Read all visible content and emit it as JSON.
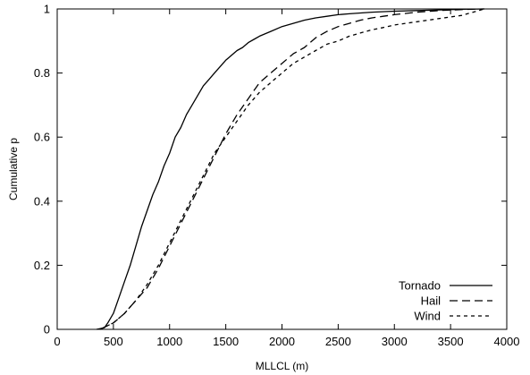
{
  "chart_data": {
    "type": "line",
    "title": "",
    "xlabel": "MLLCL (m)",
    "ylabel": "Cumulative p",
    "xlim": [
      0,
      4000
    ],
    "ylim": [
      0,
      1
    ],
    "xticks": [
      "0",
      "500",
      "1000",
      "1500",
      "2000",
      "2500",
      "3000",
      "3500",
      "4000"
    ],
    "yticks": [
      "0",
      "0.2",
      "0.4",
      "0.6",
      "0.8",
      "1"
    ],
    "grid": false,
    "legend_position": "bottom-right",
    "series": [
      {
        "name": "Tornado",
        "dash": "solid",
        "x": [
          350,
          420,
          450,
          500,
          550,
          600,
          650,
          700,
          750,
          800,
          850,
          900,
          950,
          1000,
          1050,
          1100,
          1150,
          1200,
          1250,
          1300,
          1350,
          1400,
          1450,
          1500,
          1550,
          1600,
          1650,
          1700,
          1750,
          1800,
          1900,
          2000,
          2100,
          2200,
          2300,
          2400,
          2500,
          2600,
          2800,
          3000,
          3200,
          3400,
          3600,
          3800
        ],
        "y": [
          0,
          0.005,
          0.02,
          0.05,
          0.1,
          0.15,
          0.2,
          0.26,
          0.32,
          0.37,
          0.42,
          0.46,
          0.51,
          0.55,
          0.6,
          0.63,
          0.67,
          0.7,
          0.73,
          0.76,
          0.78,
          0.8,
          0.82,
          0.84,
          0.855,
          0.87,
          0.88,
          0.895,
          0.905,
          0.915,
          0.93,
          0.945,
          0.955,
          0.965,
          0.972,
          0.977,
          0.982,
          0.985,
          0.99,
          0.993,
          0.995,
          0.997,
          0.999,
          1
        ]
      },
      {
        "name": "Hail",
        "dash": "long",
        "x": [
          380,
          500,
          600,
          700,
          800,
          900,
          1000,
          1100,
          1200,
          1300,
          1400,
          1500,
          1600,
          1700,
          1800,
          1900,
          2000,
          2100,
          2200,
          2300,
          2400,
          2500,
          2600,
          2700,
          2800,
          2900,
          3000,
          3200,
          3400,
          3600,
          3800
        ],
        "y": [
          0,
          0.02,
          0.05,
          0.09,
          0.13,
          0.19,
          0.26,
          0.33,
          0.4,
          0.47,
          0.54,
          0.61,
          0.67,
          0.72,
          0.77,
          0.8,
          0.83,
          0.86,
          0.88,
          0.91,
          0.93,
          0.945,
          0.955,
          0.965,
          0.972,
          0.977,
          0.982,
          0.99,
          0.995,
          0.998,
          1
        ]
      },
      {
        "name": "Wind",
        "dash": "short",
        "x": [
          380,
          500,
          600,
          700,
          800,
          900,
          1000,
          1100,
          1200,
          1300,
          1400,
          1500,
          1600,
          1700,
          1800,
          1900,
          2000,
          2100,
          2200,
          2300,
          2400,
          2500,
          2600,
          2700,
          2800,
          2900,
          3000,
          3200,
          3400,
          3600,
          3800
        ],
        "y": [
          0,
          0.02,
          0.05,
          0.09,
          0.14,
          0.2,
          0.27,
          0.34,
          0.41,
          0.48,
          0.55,
          0.6,
          0.65,
          0.7,
          0.74,
          0.77,
          0.8,
          0.83,
          0.85,
          0.87,
          0.89,
          0.9,
          0.915,
          0.925,
          0.935,
          0.942,
          0.95,
          0.96,
          0.97,
          0.98,
          1
        ]
      }
    ]
  }
}
